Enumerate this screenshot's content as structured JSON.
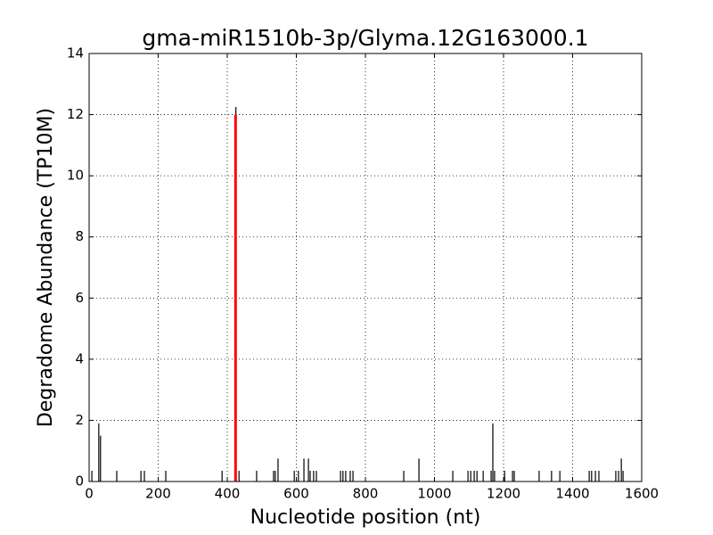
{
  "chart_data": {
    "type": "stem",
    "title": "gma-miR1510b-3p/Glyma.12G163000.1",
    "x_label": "Nucleotide position (nt)",
    "y_label": "Degradome Abundance (TP10M)",
    "xlim": [
      0,
      1600
    ],
    "xticks": [
      0,
      200,
      400,
      600,
      800,
      1000,
      1200,
      1400,
      1600
    ],
    "ylim": [
      0,
      14
    ],
    "yticks": [
      0,
      2,
      4,
      6,
      8,
      10,
      12,
      14
    ],
    "grid": true,
    "series": [
      {
        "color": "#000000",
        "x": [
          8,
          28,
          33,
          80,
          150,
          160,
          222,
          385,
          425,
          434,
          485,
          534,
          539,
          547,
          594,
          606,
          622,
          635,
          640,
          650,
          658,
          728,
          735,
          743,
          756,
          764,
          911,
          955,
          1053,
          1097,
          1105,
          1115,
          1123,
          1141,
          1164,
          1169,
          1174,
          1203,
          1226,
          1231,
          1303,
          1339,
          1363,
          1448,
          1455,
          1466,
          1476,
          1525,
          1533,
          1541,
          1546
        ],
        "values": [
          0.35,
          1.9,
          1.5,
          0.35,
          0.35,
          0.35,
          0.35,
          0.35,
          12.25,
          0.35,
          0.35,
          0.35,
          0.35,
          0.75,
          0.35,
          0.35,
          0.75,
          0.75,
          0.35,
          0.35,
          0.35,
          0.35,
          0.35,
          0.35,
          0.35,
          0.35,
          0.35,
          0.75,
          0.35,
          0.35,
          0.35,
          0.35,
          0.35,
          0.35,
          0.35,
          1.9,
          0.35,
          0.35,
          0.35,
          0.35,
          0.35,
          0.35,
          0.35,
          0.35,
          0.35,
          0.35,
          0.35,
          0.35,
          0.35,
          0.75,
          0.35
        ]
      },
      {
        "color": "#ff0000",
        "x": [
          424
        ],
        "values": [
          12.0
        ],
        "width": 3
      }
    ]
  }
}
